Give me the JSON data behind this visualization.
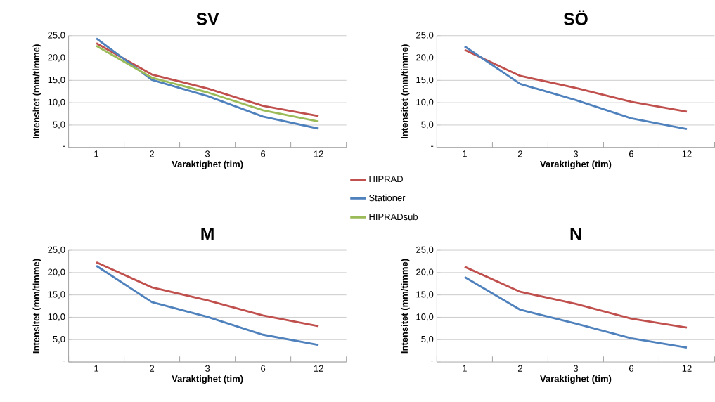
{
  "chart_data": [
    {
      "type": "line",
      "title": "SV",
      "xlabel": "Varaktighet (tim)",
      "ylabel": "Intensitet (mm/timme)",
      "categories": [
        "1",
        "2",
        "3",
        "6",
        "12"
      ],
      "ylim": [
        0,
        25
      ],
      "yticks": [
        {
          "value": 0,
          "label": "-"
        },
        {
          "value": 5,
          "label": "5,0"
        },
        {
          "value": 10,
          "label": "10,0"
        },
        {
          "value": 15,
          "label": "15,0"
        },
        {
          "value": 20,
          "label": "20,0"
        },
        {
          "value": 25,
          "label": "25,0"
        }
      ],
      "grid": "y",
      "legend": "bottom right",
      "series": [
        {
          "name": "HIPRAD",
          "color": "#c0504d",
          "values": [
            23.3,
            16.3,
            13.2,
            9.3,
            7.0
          ]
        },
        {
          "name": "Stationer",
          "color": "#4f81bd",
          "values": [
            24.4,
            15.1,
            11.5,
            6.9,
            4.2
          ]
        },
        {
          "name": "HIPRADsub",
          "color": "#9bbb59",
          "values": [
            22.7,
            15.6,
            12.3,
            8.3,
            5.8
          ]
        }
      ]
    },
    {
      "type": "line",
      "title": "SÖ",
      "xlabel": "Varaktighet (tim)",
      "ylabel": "Intensitet (mm/timme)",
      "categories": [
        "1",
        "2",
        "3",
        "6",
        "12"
      ],
      "ylim": [
        0,
        25
      ],
      "yticks": [
        {
          "value": 0,
          "label": "-"
        },
        {
          "value": 5,
          "label": "5,0"
        },
        {
          "value": 10,
          "label": "10,0"
        },
        {
          "value": 15,
          "label": "15,0"
        },
        {
          "value": 20,
          "label": "20,0"
        },
        {
          "value": 25,
          "label": "25,0"
        }
      ],
      "grid": "y",
      "series": [
        {
          "color": "#c0504d",
          "values": [
            21.8,
            16.0,
            13.3,
            10.2,
            8.0
          ]
        },
        {
          "color": "#4f81bd",
          "values": [
            22.6,
            14.2,
            10.6,
            6.5,
            4.1
          ]
        }
      ]
    },
    {
      "type": "line",
      "title": "M",
      "xlabel": "Varaktighet (tim)",
      "ylabel": "Intensitet (mm/timme)",
      "categories": [
        "1",
        "2",
        "3",
        "6",
        "12"
      ],
      "ylim": [
        0,
        25
      ],
      "yticks": [
        {
          "value": 0,
          "label": "-"
        },
        {
          "value": 5,
          "label": "5,0"
        },
        {
          "value": 10,
          "label": "10,0"
        },
        {
          "value": 15,
          "label": "15,0"
        },
        {
          "value": 20,
          "label": "20,0"
        },
        {
          "value": 25,
          "label": "25,0"
        }
      ],
      "grid": "y",
      "series": [
        {
          "color": "#c0504d",
          "values": [
            22.3,
            16.7,
            13.8,
            10.4,
            8.0
          ]
        },
        {
          "color": "#4f81bd",
          "values": [
            21.5,
            13.4,
            10.1,
            6.1,
            3.8
          ]
        }
      ]
    },
    {
      "type": "line",
      "title": "N",
      "xlabel": "Varaktighet (tim)",
      "ylabel": "Intensitet (mm/timme)",
      "categories": [
        "1",
        "2",
        "3",
        "6",
        "12"
      ],
      "ylim": [
        0,
        25
      ],
      "yticks": [
        {
          "value": 0,
          "label": "-"
        },
        {
          "value": 5,
          "label": "5,0"
        },
        {
          "value": 10,
          "label": "10,0"
        },
        {
          "value": 15,
          "label": "15,0"
        },
        {
          "value": 20,
          "label": "20,0"
        },
        {
          "value": 25,
          "label": "25,0"
        }
      ],
      "grid": "y",
      "series": [
        {
          "color": "#c0504d",
          "values": [
            21.3,
            15.7,
            13.0,
            9.7,
            7.7
          ]
        },
        {
          "color": "#4f81bd",
          "values": [
            19.0,
            11.7,
            8.6,
            5.3,
            3.2
          ]
        }
      ]
    }
  ]
}
